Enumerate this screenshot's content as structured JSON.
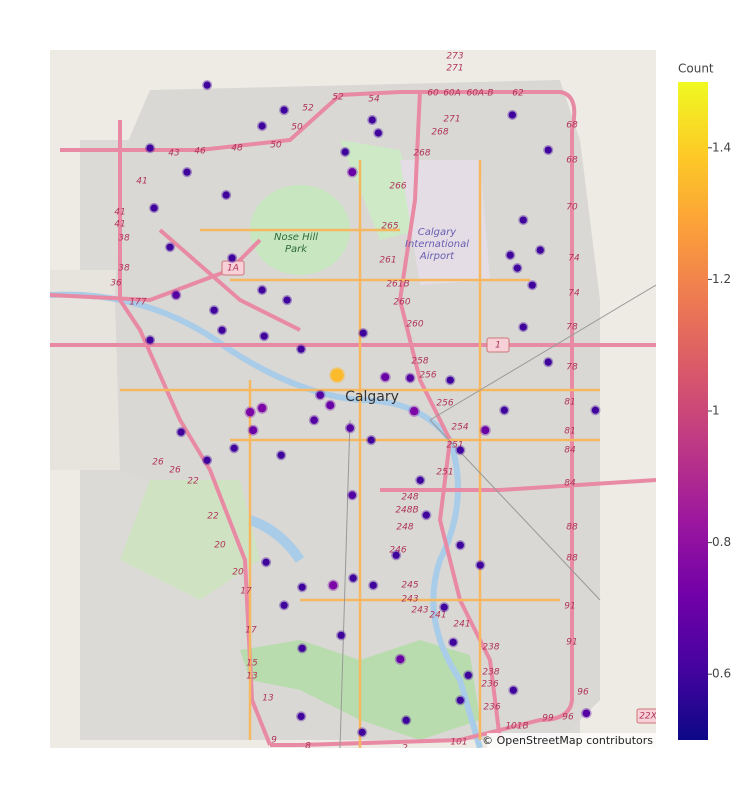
{
  "chart_data": {
    "type": "density_map",
    "colorbar_title": "Count",
    "zlim": [
      0.5,
      1.5
    ],
    "zticks": [
      0.6,
      0.8,
      1,
      1.2,
      1.4
    ],
    "colorscale": [
      "#0d0887",
      "#46039f",
      "#7201a8",
      "#9c179e",
      "#bd3786",
      "#d8576b",
      "#ed7953",
      "#fb9f3a",
      "#fdca26",
      "#f0f921"
    ],
    "lonlim": [
      -114.28,
      -113.87
    ],
    "latlim": [
      50.85,
      51.21
    ],
    "lat": [
      51.1919,
      51.179,
      51.1708,
      51.1739,
      51.1672,
      51.1574,
      51.147,
      51.1594,
      51.147,
      51.1352,
      51.1285,
      51.1083,
      51.1027,
      51.0836,
      51.0862,
      51.081,
      51.0758,
      51.0655,
      51.0604,
      51.0624,
      51.0557,
      51.064,
      51.0423,
      51.0413,
      51.0408,
      51.0397,
      51.0237,
      51.032,
      51.0232,
      51.0253,
      51.0268,
      51.015,
      51.0191,
      51.0139,
      51.0046,
      51.0129,
      50.9984,
      51.001,
      51.0088,
      50.9804,
      50.9881,
      51.0139,
      51.0242,
      51.0975,
      51.1042,
      51.1068,
      51.1223,
      51.0671,
      51.049,
      51.0242,
      51.0036,
      50.9701,
      50.9546,
      50.9494,
      50.9339,
      50.9376,
      50.9339,
      50.9458,
      50.9329,
      50.9236,
      50.9081,
      50.8958,
      50.9045,
      50.8875,
      50.8746,
      50.8798,
      50.8679,
      50.8663,
      50.8643,
      50.8581,
      50.9014,
      51.1765,
      51.1584,
      51.0887,
      50.9443,
      50.9226
    ],
    "lon": [
      -114.1737,
      -114.1216,
      -114.1365,
      -114.062,
      -114.0579,
      -114.0803,
      -114.0755,
      -114.2123,
      -114.1873,
      -114.1608,
      -114.2096,
      -114.1988,
      -114.1568,
      -114.1947,
      -114.1365,
      -114.1196,
      -114.169,
      -114.1636,
      -114.2123,
      -114.1351,
      -114.1101,
      -114.0681,
      -114.0857,
      -114.0532,
      -114.0363,
      -114.0092,
      -114.0336,
      -114.0972,
      -114.1446,
      -114.1365,
      -114.0904,
      -114.0769,
      -114.1013,
      -114.1426,
      -114.1554,
      -114.1913,
      -114.1737,
      -114.1236,
      -114.0627,
      -114.0755,
      -114.0295,
      -113.9855,
      -113.9726,
      -113.9638,
      -113.9686,
      -113.9483,
      -113.9598,
      -113.9598,
      -113.9429,
      -113.911,
      -114.0024,
      -114.0254,
      -114.0024,
      -114.0458,
      -114.0884,
      -114.0749,
      -114.0613,
      -114.1338,
      -114.1094,
      -114.1216,
      -114.083,
      -114.043,
      -114.0072,
      -113.997,
      -114.0024,
      -113.9665,
      -113.9171,
      -114.1101,
      -114.039,
      -114.0688,
      -114.1094,
      -113.9672,
      -113.9429,
      -113.9537,
      -113.9889,
      -114.0133
    ],
    "z": [
      0.6,
      0.6,
      0.6,
      0.6,
      0.6,
      0.6,
      0.7,
      0.6,
      0.6,
      0.6,
      0.6,
      0.6,
      0.6,
      0.65,
      0.6,
      0.6,
      0.6,
      0.6,
      0.6,
      0.6,
      0.6,
      0.6,
      1.35,
      0.7,
      0.65,
      0.6,
      0.75,
      0.65,
      0.75,
      0.75,
      0.7,
      0.65,
      0.65,
      0.7,
      0.6,
      0.6,
      0.6,
      0.6,
      0.6,
      0.65,
      0.6,
      0.7,
      0.6,
      0.6,
      0.6,
      0.6,
      0.6,
      0.6,
      0.6,
      0.6,
      0.6,
      0.6,
      0.6,
      0.6,
      0.75,
      0.6,
      0.6,
      0.6,
      0.6,
      0.6,
      0.6,
      0.7,
      0.6,
      0.6,
      0.6,
      0.6,
      0.65,
      0.6,
      0.6,
      0.6,
      0.6,
      0.6,
      0.6,
      0.6,
      0.6,
      0.6
    ],
    "attribution": "© OpenStreetMap contributors",
    "city_label": "Calgary",
    "place_labels": [
      "Nose Hill",
      "Park"
    ],
    "airport_labels": [
      "Calgary",
      "International",
      "Airport"
    ],
    "shield_labels": [
      "1A",
      "1",
      "22X"
    ],
    "road_labels": [
      "273",
      "271",
      "52",
      "52",
      "54",
      "60",
      "60A",
      "60A-B",
      "62",
      "50",
      "48",
      "50",
      "46",
      "43",
      "271",
      "268",
      "268",
      "68",
      "68",
      "266",
      "41",
      "41",
      "41",
      "38",
      "38",
      "36",
      "177",
      "70",
      "265",
      "261",
      "74",
      "74",
      "261B",
      "260",
      "260",
      "78",
      "78",
      "258",
      "256",
      "256",
      "81",
      "81",
      "254",
      "251",
      "84",
      "84",
      "251",
      "26",
      "26",
      "22",
      "248",
      "248B",
      "248",
      "88",
      "88",
      "22",
      "20",
      "246",
      "20",
      "17",
      "245",
      "243",
      "243",
      "241",
      "241",
      "91",
      "91",
      "17",
      "238",
      "15",
      "13",
      "238",
      "236",
      "236",
      "96",
      "13",
      "99",
      "96",
      "101B",
      "9",
      "8",
      "101",
      "2"
    ]
  }
}
